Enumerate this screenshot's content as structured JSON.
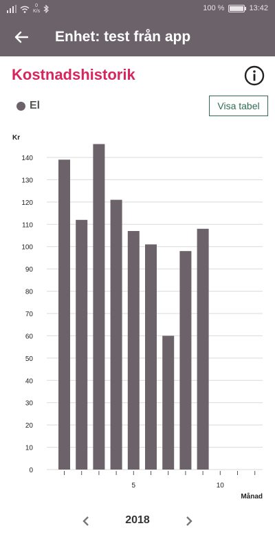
{
  "status_bar": {
    "speed_value": "0",
    "speed_unit": "K/s",
    "battery_text": "100 %",
    "battery_level": 1.0,
    "time": "13:42"
  },
  "app_bar": {
    "title": "Enhet: test från app",
    "back_icon": "arrow-left-icon"
  },
  "section": {
    "title": "Kostnadshistorik",
    "info_icon": "info-icon"
  },
  "legend": {
    "label": "El",
    "color": "#6c6269"
  },
  "table_button": {
    "label": "Visa tabel"
  },
  "colors": {
    "header": "#6c6269",
    "accent": "#d7265d",
    "button_border": "#2f6b52",
    "bar": "#6c6269",
    "grid": "#d9d9d9"
  },
  "chart_data": {
    "type": "bar",
    "ylabel": "Kr",
    "xlabel": "Månad",
    "ylim": [
      0,
      140
    ],
    "yticks": [
      0,
      10,
      20,
      30,
      40,
      50,
      60,
      70,
      80,
      90,
      100,
      110,
      120,
      130,
      140
    ],
    "xticks_labeled": [
      5,
      10
    ],
    "months": [
      1,
      2,
      3,
      4,
      5,
      6,
      7,
      8,
      9,
      10,
      11,
      12
    ],
    "series": [
      {
        "name": "El",
        "values": [
          139,
          112,
          146,
          121,
          107,
          101,
          60,
          98,
          108,
          null,
          null,
          null
        ]
      }
    ],
    "grid": true
  },
  "year_nav": {
    "year": "2018",
    "prev_icon": "chevron-left-icon",
    "next_icon": "chevron-right-icon"
  }
}
